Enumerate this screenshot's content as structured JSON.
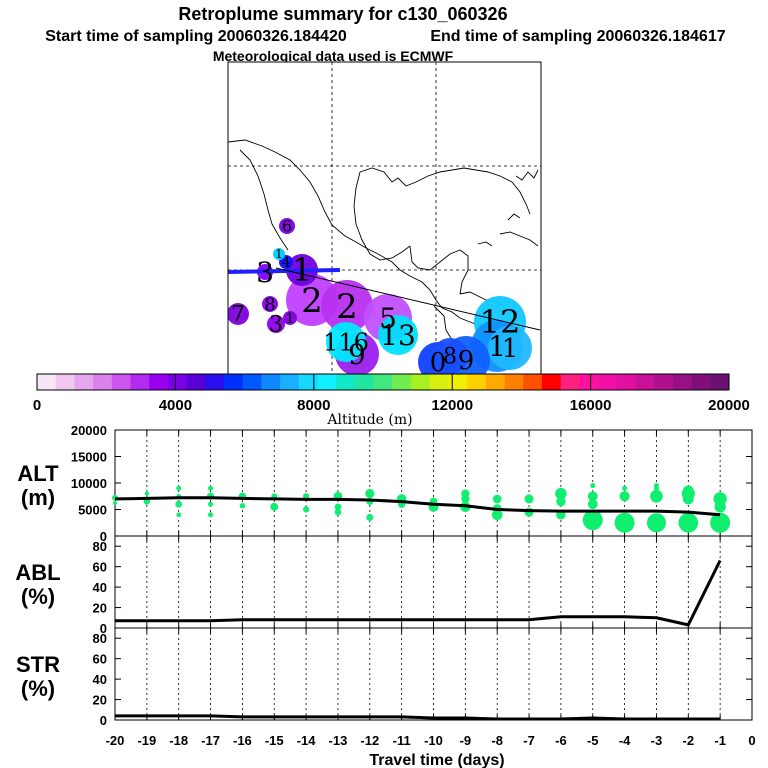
{
  "chart_data": [
    {
      "type": "map",
      "title": "Retroplume summary for c130_060326",
      "subtitle_start": "Start time of sampling 20060326.184420",
      "subtitle_end": "End time of sampling 20060326.184617",
      "subtitle_met": "Meteorological data used is ECMWF",
      "plume_labels": [
        {
          "label": "6",
          "color": "#7a00e0"
        },
        {
          "label": "1",
          "color": "#00ccff"
        },
        {
          "label": "4",
          "color": "#1010ff"
        },
        {
          "label": "3",
          "color": "#8800ff"
        },
        {
          "label": "1",
          "color": "#7000e0"
        },
        {
          "label": "2",
          "color": "#c040ff"
        },
        {
          "label": "8",
          "color": "#8800ee"
        },
        {
          "label": "2",
          "color": "#b830f0"
        },
        {
          "label": "5",
          "color": "#c050ff"
        },
        {
          "label": "7",
          "color": "#8000dd"
        },
        {
          "label": "3",
          "color": "#9000ee"
        },
        {
          "label": "1",
          "color": "#8000dd"
        },
        {
          "label": "13",
          "color": "#00e0ff"
        },
        {
          "label": "116",
          "color": "#00e8ff"
        },
        {
          "label": "9",
          "color": "#9a20f0"
        },
        {
          "label": "12",
          "color": "#10c8ff"
        },
        {
          "label": "1",
          "color": "#1090ff"
        },
        {
          "label": "1",
          "color": "#20b8ff"
        },
        {
          "label": "0",
          "color": "#1040ff"
        },
        {
          "label": "9",
          "color": "#1060ff"
        },
        {
          "label": "8",
          "color": "#1850ff"
        }
      ]
    },
    {
      "type": "colorbar",
      "label": "Altitude (m)",
      "range": [
        0,
        20000
      ],
      "tick_labels": [
        "0",
        "4000",
        "8000",
        "12000",
        "16000",
        "20000"
      ],
      "colors": [
        "#f6e6f6",
        "#f0c8f0",
        "#e6a6ee",
        "#dc82ec",
        "#cc55ee",
        "#b22bee",
        "#9a00f0",
        "#7a00e6",
        "#5800d8",
        "#2a10f0",
        "#0030ff",
        "#0058ff",
        "#1088ff",
        "#18b0ff",
        "#18d8ff",
        "#10f0ff",
        "#10e8c8",
        "#20e6a0",
        "#40e880",
        "#70ee50",
        "#a8f020",
        "#d8f010",
        "#f0f000",
        "#ffd000",
        "#ffaa00",
        "#ff8000",
        "#ff5000",
        "#ff0000",
        "#ff2080",
        "#ff10a0",
        "#f010a8",
        "#e010a0",
        "#c81098",
        "#b01090",
        "#981088",
        "#801078",
        "#6a1070"
      ]
    },
    {
      "type": "scatter+line",
      "panel": "ALT (m)",
      "label_top": "ALT",
      "label_bottom": "(m)",
      "ylim": [
        0,
        20000
      ],
      "yticks": [
        "0",
        "5000",
        "10000",
        "15000",
        "20000"
      ],
      "x": [
        -20,
        -19,
        -18,
        -17,
        -16,
        -15,
        -14,
        -13,
        -12,
        -11,
        -10,
        -9,
        -8,
        -7,
        -6,
        -5,
        -4,
        -3,
        -2,
        -1
      ],
      "median_line": [
        7000,
        7100,
        7200,
        7200,
        7100,
        7000,
        6900,
        6900,
        6800,
        6500,
        6000,
        5700,
        5000,
        4800,
        4700,
        4700,
        4700,
        4700,
        4500,
        4000
      ],
      "points": [
        {
          "x": -20,
          "y": 7200
        },
        {
          "x": -20,
          "y": 6200
        },
        {
          "x": -19,
          "y": 8000
        },
        {
          "x": -19,
          "y": 6500
        },
        {
          "x": -18,
          "y": 9000
        },
        {
          "x": -18,
          "y": 7500
        },
        {
          "x": -18,
          "y": 6000
        },
        {
          "x": -18,
          "y": 4000
        },
        {
          "x": -17,
          "y": 9000
        },
        {
          "x": -17,
          "y": 7500
        },
        {
          "x": -17,
          "y": 6000
        },
        {
          "x": -17,
          "y": 4000
        },
        {
          "x": -16,
          "y": 7500
        },
        {
          "x": -16,
          "y": 5700
        },
        {
          "x": -15,
          "y": 7500
        },
        {
          "x": -15,
          "y": 5500
        },
        {
          "x": -14,
          "y": 7500
        },
        {
          "x": -14,
          "y": 5000
        },
        {
          "x": -13,
          "y": 7500
        },
        {
          "x": -13,
          "y": 5500
        },
        {
          "x": -13,
          "y": 4500
        },
        {
          "x": -12,
          "y": 8000
        },
        {
          "x": -12,
          "y": 6500
        },
        {
          "x": -12,
          "y": 3500
        },
        {
          "x": -11,
          "y": 7000
        },
        {
          "x": -11,
          "y": 6000
        },
        {
          "x": -10,
          "y": 6500
        },
        {
          "x": -10,
          "y": 5500
        },
        {
          "x": -9,
          "y": 8000
        },
        {
          "x": -9,
          "y": 7000
        },
        {
          "x": -9,
          "y": 5500
        },
        {
          "x": -8,
          "y": 7000
        },
        {
          "x": -8,
          "y": 5200
        },
        {
          "x": -8,
          "y": 4000
        },
        {
          "x": -7,
          "y": 7000
        },
        {
          "x": -7,
          "y": 4500
        },
        {
          "x": -6,
          "y": 8000
        },
        {
          "x": -6,
          "y": 6500
        },
        {
          "x": -6,
          "y": 4000
        },
        {
          "x": -5,
          "y": 9500
        },
        {
          "x": -5,
          "y": 7500
        },
        {
          "x": -5,
          "y": 6000
        },
        {
          "x": -5,
          "y": 3000
        },
        {
          "x": -4,
          "y": 9000
        },
        {
          "x": -4,
          "y": 7500
        },
        {
          "x": -4,
          "y": 2500
        },
        {
          "x": -3,
          "y": 9500
        },
        {
          "x": -3,
          "y": 9000
        },
        {
          "x": -3,
          "y": 7500
        },
        {
          "x": -3,
          "y": 2500
        },
        {
          "x": -2,
          "y": 8500
        },
        {
          "x": -2,
          "y": 8000
        },
        {
          "x": -2,
          "y": 7000
        },
        {
          "x": -2,
          "y": 2500
        },
        {
          "x": -1,
          "y": 7000
        },
        {
          "x": -1,
          "y": 5500
        },
        {
          "x": -1,
          "y": 2500
        }
      ]
    },
    {
      "type": "line",
      "panel": "ABL (%)",
      "label_top": "ABL",
      "label_bottom": "(%)",
      "ylim": [
        0,
        90
      ],
      "yticks": [
        "0",
        "20",
        "40",
        "60",
        "80"
      ],
      "x": [
        -20,
        -19,
        -18,
        -17,
        -16,
        -15,
        -14,
        -13,
        -12,
        -11,
        -10,
        -9,
        -8,
        -7,
        -6,
        -5,
        -4,
        -3,
        -2,
        -1
      ],
      "values": [
        7,
        7,
        7,
        7,
        8,
        8,
        8,
        8,
        8,
        8,
        8,
        8,
        8,
        8,
        11,
        11,
        11,
        10,
        3,
        66
      ]
    },
    {
      "type": "line",
      "panel": "STR (%)",
      "label_top": "STR",
      "label_bottom": "(%)",
      "ylim": [
        0,
        90
      ],
      "yticks": [
        "0",
        "20",
        "40",
        "60",
        "80"
      ],
      "x": [
        -20,
        -19,
        -18,
        -17,
        -16,
        -15,
        -14,
        -13,
        -12,
        -11,
        -10,
        -9,
        -8,
        -7,
        -6,
        -5,
        -4,
        -3,
        -2,
        -1
      ],
      "values": [
        4,
        4,
        4,
        4,
        3,
        3,
        3,
        3,
        3,
        3,
        2,
        2,
        1,
        1,
        1,
        2,
        1,
        1,
        1,
        1
      ]
    },
    {
      "type": "axis",
      "xlabel": "Travel time (days)",
      "xlim": [
        -20,
        0
      ],
      "xticks": [
        "-20",
        "-19",
        "-18",
        "-17",
        "-16",
        "-15",
        "-14",
        "-13",
        "-12",
        "-11",
        "-10",
        "-9",
        "-8",
        "-7",
        "-6",
        "-5",
        "-4",
        "-3",
        "-2",
        "-1",
        "0"
      ]
    }
  ]
}
